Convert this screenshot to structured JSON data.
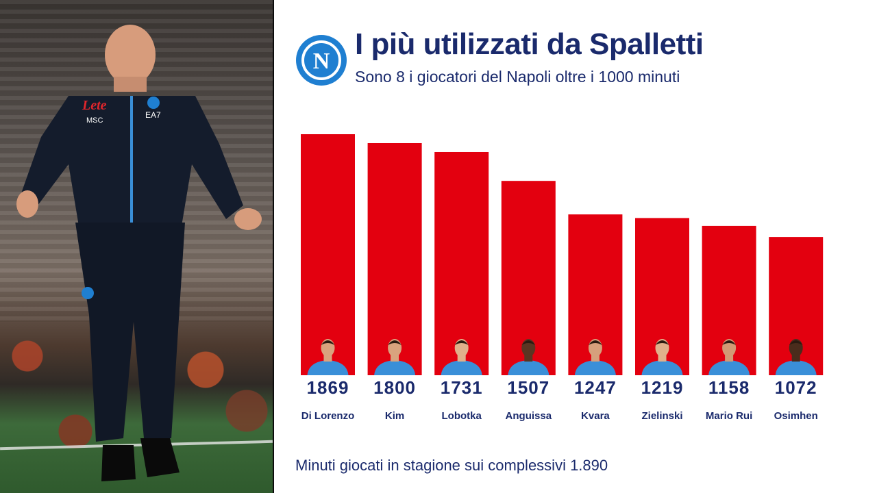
{
  "header": {
    "title": "I più utilizzati da Spalletti",
    "subtitle": "Sono 8 i giocatori del Napoli oltre i 1000 minuti",
    "badge_letter": "N"
  },
  "footnote": "Minuti giocati in stagione sui complessivi 1.890",
  "photo": {
    "jersey_sponsor": "Lete",
    "jersey_brand": "EA7",
    "jersey_sponsor2": "MSC"
  },
  "colors": {
    "bar": "#e3000f",
    "text": "#1a2a6c",
    "badge": "#1f7fd1",
    "jersey": "#3a8fd8"
  },
  "chart_data": {
    "type": "bar",
    "categories": [
      "Di Lorenzo",
      "Kim",
      "Lobotka",
      "Anguissa",
      "Kvara",
      "Zielinski",
      "Mario Rui",
      "Osimhen"
    ],
    "values": [
      1869,
      1800,
      1731,
      1507,
      1247,
      1219,
      1158,
      1072
    ],
    "value_labels": [
      "1869",
      "1800",
      "1731",
      "1507",
      "1247",
      "1219",
      "1158",
      "1072"
    ],
    "ylim": [
      0,
      1890
    ],
    "grid": false,
    "legend": "none",
    "bar_color": "#e3000f",
    "player_photo_icon": "player-portrait-icon",
    "skin_tones": [
      "#d9a37e",
      "#d9a37e",
      "#e0b08a",
      "#5a3522",
      "#d6a07c",
      "#e0b08a",
      "#d29a74",
      "#4a2c1c"
    ]
  }
}
